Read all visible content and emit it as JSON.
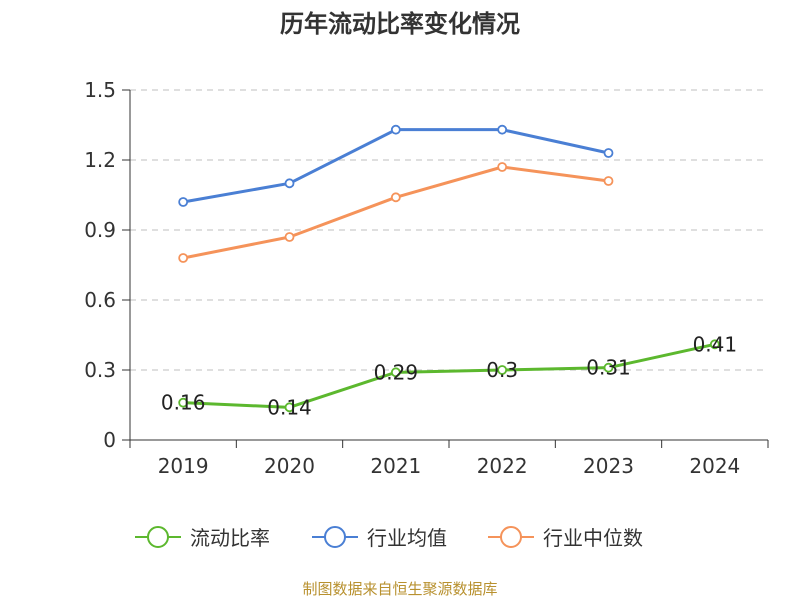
{
  "chart_data": {
    "type": "line",
    "title": "历年流动比率变化情况",
    "categories": [
      "2019",
      "2020",
      "2021",
      "2022",
      "2023",
      "2024"
    ],
    "ylim": [
      0,
      1.5
    ],
    "yticks": [
      "0",
      "0.3",
      "0.6",
      "0.9",
      "1.2",
      "1.5"
    ],
    "grid": true,
    "legend_position": "bottom",
    "series": [
      {
        "name": "流动比率",
        "color": "#5cb82e",
        "values": [
          0.16,
          0.14,
          0.29,
          0.3,
          0.31,
          0.41
        ],
        "labels": [
          "0.16",
          "0.14",
          "0.29",
          "0.3",
          "0.31",
          "0.41"
        ]
      },
      {
        "name": "行业均值",
        "color": "#4a7fd4",
        "values": [
          1.02,
          1.1,
          1.33,
          1.33,
          1.23,
          null
        ]
      },
      {
        "name": "行业中位数",
        "color": "#f5935a",
        "values": [
          0.78,
          0.87,
          1.04,
          1.17,
          1.11,
          null
        ]
      }
    ]
  },
  "footer": {
    "source": "制图数据来自恒生聚源数据库"
  }
}
